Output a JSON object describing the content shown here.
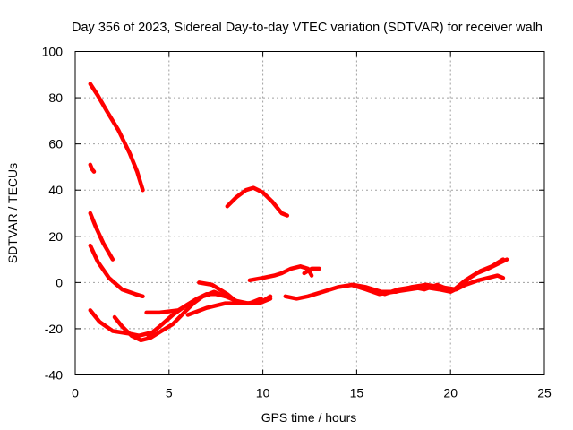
{
  "chart_data": {
    "type": "scatter",
    "title": "Day 356 of 2023, Sidereal Day-to-day VTEC variation (SDTVAR) for receiver walh",
    "xlabel": "GPS time / hours",
    "ylabel": "SDTVAR / TECUs",
    "xlim": [
      0,
      25
    ],
    "ylim": [
      -40,
      100
    ],
    "xticks": [
      "0",
      "5",
      "10",
      "15",
      "20",
      "25"
    ],
    "yticks": [
      "-40",
      "-20",
      "0",
      "20",
      "40",
      "60",
      "80",
      "100"
    ],
    "grid": true,
    "color": "#ff0000",
    "series": [
      {
        "name": "arc-1",
        "points": [
          [
            0.8,
            86
          ],
          [
            1.2,
            81
          ],
          [
            1.7,
            74
          ],
          [
            2.3,
            66
          ],
          [
            2.9,
            56
          ],
          [
            3.3,
            48
          ],
          [
            3.6,
            40
          ]
        ]
      },
      {
        "name": "arc-2",
        "points": [
          [
            0.8,
            51
          ],
          [
            0.9,
            49
          ],
          [
            1.0,
            48
          ]
        ]
      },
      {
        "name": "arc-3",
        "points": [
          [
            0.8,
            30
          ],
          [
            1.1,
            24
          ],
          [
            1.5,
            17
          ],
          [
            2.0,
            10
          ]
        ]
      },
      {
        "name": "arc-4",
        "points": [
          [
            0.8,
            16
          ],
          [
            1.2,
            9
          ],
          [
            1.8,
            2
          ],
          [
            2.5,
            -3
          ],
          [
            3.2,
            -5
          ],
          [
            3.6,
            -6
          ]
        ]
      },
      {
        "name": "arc-5",
        "points": [
          [
            0.8,
            -12
          ],
          [
            1.3,
            -17
          ],
          [
            2.0,
            -21
          ],
          [
            2.8,
            -22
          ],
          [
            3.4,
            -23
          ],
          [
            3.9,
            -22
          ]
        ]
      },
      {
        "name": "arc-6",
        "points": [
          [
            2.1,
            -15
          ],
          [
            2.5,
            -19
          ],
          [
            3.0,
            -23
          ],
          [
            3.5,
            -25
          ],
          [
            4.0,
            -24
          ],
          [
            4.6,
            -21
          ],
          [
            5.2,
            -18
          ],
          [
            5.8,
            -13
          ],
          [
            6.3,
            -9
          ],
          [
            6.8,
            -6
          ],
          [
            7.2,
            -5
          ]
        ]
      },
      {
        "name": "arc-7",
        "points": [
          [
            3.9,
            -23
          ],
          [
            4.5,
            -19
          ],
          [
            5.2,
            -14
          ],
          [
            5.9,
            -10
          ],
          [
            6.5,
            -7
          ],
          [
            7.0,
            -5
          ],
          [
            7.5,
            -5
          ],
          [
            8.0,
            -6
          ]
        ]
      },
      {
        "name": "arc-8",
        "points": [
          [
            3.8,
            -13
          ],
          [
            4.5,
            -13
          ],
          [
            5.5,
            -12
          ],
          [
            6.5,
            -7
          ],
          [
            7.4,
            -4
          ],
          [
            8.0,
            -6
          ],
          [
            8.6,
            -8
          ],
          [
            9.2,
            -9
          ],
          [
            10.0,
            -8
          ],
          [
            10.4,
            -6
          ]
        ]
      },
      {
        "name": "arc-9",
        "points": [
          [
            6.0,
            -14
          ],
          [
            7.0,
            -11
          ],
          [
            8.0,
            -9
          ],
          [
            9.0,
            -9
          ],
          [
            9.8,
            -9
          ],
          [
            10.4,
            -7
          ]
        ]
      },
      {
        "name": "arc-10",
        "points": [
          [
            6.6,
            0
          ],
          [
            7.3,
            -1
          ],
          [
            8.1,
            -5
          ],
          [
            8.7,
            -9
          ],
          [
            9.3,
            -9
          ],
          [
            9.9,
            -7
          ]
        ]
      },
      {
        "name": "arc-11",
        "points": [
          [
            8.1,
            33
          ],
          [
            8.6,
            37
          ],
          [
            9.1,
            40
          ],
          [
            9.5,
            41
          ],
          [
            10.0,
            39
          ],
          [
            10.5,
            35
          ],
          [
            11.0,
            30
          ],
          [
            11.3,
            29
          ]
        ]
      },
      {
        "name": "arc-12",
        "points": [
          [
            9.3,
            1
          ],
          [
            10.0,
            2
          ],
          [
            10.6,
            3
          ],
          [
            11.0,
            4
          ],
          [
            11.5,
            6
          ],
          [
            12.0,
            7
          ],
          [
            12.4,
            6
          ],
          [
            12.6,
            3
          ]
        ]
      },
      {
        "name": "arc-13",
        "points": [
          [
            11.2,
            -6
          ],
          [
            11.8,
            -7
          ],
          [
            12.4,
            -6
          ],
          [
            13.2,
            -4
          ],
          [
            14.0,
            -2
          ],
          [
            14.8,
            -1
          ],
          [
            15.5,
            -2
          ],
          [
            16.3,
            -4
          ],
          [
            17.1,
            -4
          ],
          [
            17.9,
            -2
          ],
          [
            18.7,
            -1
          ],
          [
            19.5,
            -2
          ],
          [
            20.3,
            -3
          ],
          [
            20.8,
            -1
          ],
          [
            21.5,
            1
          ],
          [
            22.0,
            2
          ],
          [
            22.5,
            3
          ],
          [
            22.8,
            2
          ]
        ]
      },
      {
        "name": "arc-14",
        "points": [
          [
            12.2,
            4
          ],
          [
            12.6,
            6
          ],
          [
            13.0,
            6
          ]
        ]
      },
      {
        "name": "arc-15",
        "points": [
          [
            14.7,
            -1
          ],
          [
            15.5,
            -3
          ],
          [
            16.2,
            -5
          ],
          [
            17.0,
            -4
          ],
          [
            17.8,
            -3
          ],
          [
            18.6,
            -2
          ],
          [
            19.4,
            -3
          ],
          [
            20.0,
            -4
          ],
          [
            20.5,
            -2
          ],
          [
            21.0,
            2
          ],
          [
            21.6,
            5
          ],
          [
            22.2,
            7
          ],
          [
            22.8,
            10
          ]
        ]
      },
      {
        "name": "arc-16",
        "points": [
          [
            20.2,
            -3
          ],
          [
            20.8,
            1
          ],
          [
            21.4,
            4
          ],
          [
            22.0,
            6
          ],
          [
            22.5,
            8
          ],
          [
            23.0,
            10
          ]
        ]
      },
      {
        "name": "arc-17",
        "points": [
          [
            15.8,
            -3
          ],
          [
            16.5,
            -5
          ],
          [
            17.2,
            -3
          ],
          [
            18.0,
            -2
          ],
          [
            18.6,
            -3
          ],
          [
            19.3,
            -1
          ],
          [
            19.9,
            -3
          ]
        ]
      }
    ]
  }
}
